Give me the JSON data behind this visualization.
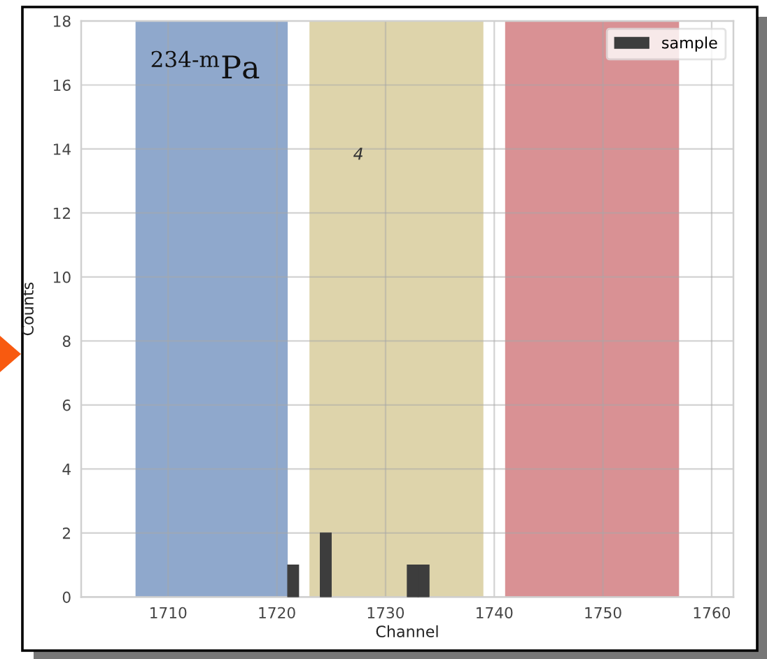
{
  "chart_data": {
    "type": "bar",
    "xlabel": "Channel",
    "ylabel": "Counts",
    "x": [
      1721.5,
      1724.5,
      1732.5,
      1733.5
    ],
    "series": [
      {
        "name": "sample",
        "color": "#3d3d3d",
        "values": [
          1,
          2,
          1,
          1
        ]
      }
    ],
    "xlim": [
      1702,
      1762
    ],
    "xticks": [
      1710,
      1720,
      1730,
      1740,
      1750,
      1760
    ],
    "ylim": [
      0,
      18
    ],
    "yticks": [
      0,
      2,
      4,
      6,
      8,
      10,
      12,
      14,
      16,
      18
    ],
    "bands": [
      {
        "axis": "x",
        "from": 1707,
        "to": 1721,
        "color": "#8fa8cc"
      },
      {
        "axis": "x",
        "from": 1723,
        "to": 1739,
        "color": "#ded4ab"
      },
      {
        "axis": "x",
        "from": 1741,
        "to": 1757,
        "color": "#d99194"
      }
    ],
    "annotations": [
      "$^{234‐m}$Pa",
      "4"
    ],
    "grid": true,
    "legend": "top right"
  }
}
